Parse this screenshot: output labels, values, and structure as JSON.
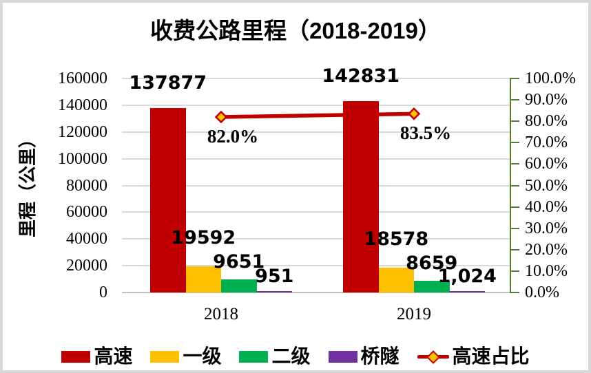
{
  "chart_data": {
    "type": "bar",
    "subtype": "bar-line-combo-dual-axis",
    "title": "收费公路里程（2018-2019）",
    "categories": [
      "2018",
      "2019"
    ],
    "series": [
      {
        "name": "高速",
        "color": "#C00000",
        "values": [
          137877,
          142831
        ],
        "labels": [
          "137877",
          "142831"
        ]
      },
      {
        "name": "一级",
        "color": "#FFC000",
        "values": [
          19592,
          18578
        ],
        "labels": [
          "19592",
          "18578"
        ]
      },
      {
        "name": "二级",
        "color": "#00B050",
        "values": [
          9651,
          8659
        ],
        "labels": [
          "9651",
          "8659"
        ]
      },
      {
        "name": "桥隧",
        "color": "#7030A0",
        "values": [
          951,
          1024
        ],
        "labels": [
          "951",
          "1,024"
        ]
      }
    ],
    "line_series": {
      "name": "高速占比",
      "values": [
        82.0,
        83.5
      ],
      "labels": [
        "82.0%",
        "83.5%"
      ],
      "color": "#C00000",
      "marker_fill": "#FFC000",
      "marker_shape": "diamond"
    },
    "left_axis": {
      "title": "里程（公里）",
      "min": 0,
      "max": 160000,
      "step": 20000,
      "tick_labels": [
        "160000",
        "140000",
        "120000",
        "100000",
        "80000",
        "60000",
        "40000",
        "20000",
        "0"
      ]
    },
    "right_axis": {
      "min": 0,
      "max": 100,
      "step": 10,
      "axis_color": "#507E32",
      "tick_labels": [
        "100.0%",
        "90.0%",
        "80.0%",
        "70.0%",
        "60.0%",
        "50.0%",
        "40.0%",
        "30.0%",
        "20.0%",
        "10.0%",
        "0.0%"
      ]
    },
    "legend": {
      "position": "bottom",
      "entries": [
        "高速",
        "一级",
        "二级",
        "桥隧",
        "高速占比"
      ]
    },
    "grid": true,
    "colors": {
      "gridline": "#D9D9D9",
      "frame_border": "#D8D8D8",
      "text": "#000000"
    }
  }
}
